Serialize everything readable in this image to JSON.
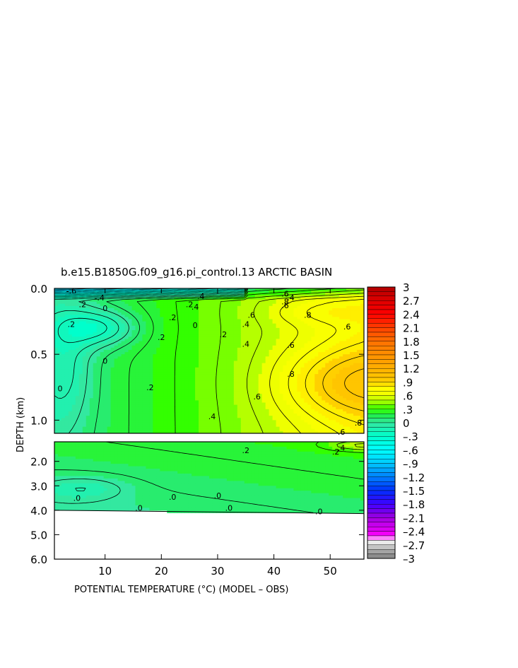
{
  "chart_data": {
    "type": "heatmap",
    "title": "b.e15.B1850G.f09_g16.pi_control.13 ARCTIC BASIN",
    "xlabel": "POTENTIAL TEMPERATURE (°C) (MODEL – OBS)",
    "ylabel": "DEPTH (km)",
    "xlim": [
      1,
      56
    ],
    "x_ticks": [
      10,
      20,
      30,
      40,
      50
    ],
    "x_tick_labels": [
      "10",
      "20",
      "30",
      "40",
      "50"
    ],
    "upper_panel": {
      "ylim": [
        0.0,
        1.1
      ],
      "y_ticks": [
        0.0,
        0.5,
        1.0
      ],
      "y_tick_labels": [
        "0.0",
        "0.5",
        "1.0"
      ]
    },
    "lower_panel": {
      "ylim": [
        1.2,
        6.0
      ],
      "y_ticks": [
        2.0,
        3.0,
        4.0,
        5.0,
        6.0
      ],
      "y_tick_labels": [
        "2.0",
        "3.0",
        "4.0",
        "5.0",
        "6.0"
      ],
      "no_data_below_depth": 4.0
    },
    "colorbar": {
      "min": -3,
      "max": 3,
      "step": 0.1,
      "tick_values": [
        3,
        2.7,
        2.4,
        2.1,
        1.8,
        1.5,
        1.2,
        0.9,
        0.6,
        0.3,
        0,
        -0.3,
        -0.6,
        -0.9,
        -1.2,
        -1.5,
        -1.8,
        -2.1,
        -2.4,
        -2.7,
        -3
      ],
      "tick_labels": [
        "3",
        "2.7",
        "2.4",
        "2.1",
        "1.8",
        "1.5",
        "1.2",
        ".9",
        ".6",
        ".3",
        "0",
        "–.3",
        "–.6",
        "–.9",
        "–1.2",
        "–1.5",
        "–1.8",
        "–2.1",
        "–2.4",
        "–2.7",
        "–3"
      ],
      "color_stops": [
        {
          "value": -3.0,
          "color": "#808080"
        },
        {
          "value": -2.8,
          "color": "#b0b0b0"
        },
        {
          "value": -2.6,
          "color": "#ffffff"
        },
        {
          "value": -2.5,
          "color": "#ff00ff"
        },
        {
          "value": -2.1,
          "color": "#a000e0"
        },
        {
          "value": -1.8,
          "color": "#4000ff"
        },
        {
          "value": -1.5,
          "color": "#0030ff"
        },
        {
          "value": -1.2,
          "color": "#0080ff"
        },
        {
          "value": -0.9,
          "color": "#00c8ff"
        },
        {
          "value": -0.6,
          "color": "#00ffff"
        },
        {
          "value": -0.3,
          "color": "#00ffcc"
        },
        {
          "value": 0.0,
          "color": "#33e8a0"
        },
        {
          "value": 0.15,
          "color": "#22ee55"
        },
        {
          "value": 0.3,
          "color": "#33ff00"
        },
        {
          "value": 0.45,
          "color": "#99ff00"
        },
        {
          "value": 0.6,
          "color": "#eeff00"
        },
        {
          "value": 0.75,
          "color": "#ffff00"
        },
        {
          "value": 0.9,
          "color": "#ffd000"
        },
        {
          "value": 1.2,
          "color": "#ffb000"
        },
        {
          "value": 1.5,
          "color": "#ff9000"
        },
        {
          "value": 1.8,
          "color": "#ff7000"
        },
        {
          "value": 2.1,
          "color": "#ff4000"
        },
        {
          "value": 2.4,
          "color": "#ff0000"
        },
        {
          "value": 2.7,
          "color": "#dd0000"
        },
        {
          "value": 3.0,
          "color": "#b00000"
        }
      ]
    },
    "contour_labels": [
      {
        "panel": "upper",
        "x": 4,
        "depth": 0.02,
        "text": "-.6"
      },
      {
        "panel": "upper",
        "x": 9,
        "depth": 0.07,
        "text": "-.4"
      },
      {
        "panel": "upper",
        "x": 6,
        "depth": 0.12,
        "text": ".2"
      },
      {
        "panel": "upper",
        "x": 10,
        "depth": 0.15,
        "text": "0"
      },
      {
        "panel": "upper",
        "x": 4,
        "depth": 0.27,
        "text": ".2"
      },
      {
        "panel": "upper",
        "x": 22,
        "depth": 0.22,
        "text": ".2"
      },
      {
        "panel": "upper",
        "x": 20,
        "depth": 0.37,
        "text": ".2"
      },
      {
        "panel": "upper",
        "x": 26,
        "depth": 0.28,
        "text": "0"
      },
      {
        "panel": "upper",
        "x": 27,
        "depth": 0.06,
        "text": ".4"
      },
      {
        "panel": "upper",
        "x": 25,
        "depth": 0.12,
        "text": ".2"
      },
      {
        "panel": "upper",
        "x": 26,
        "depth": 0.14,
        "text": ".4"
      },
      {
        "panel": "upper",
        "x": 31,
        "depth": 0.35,
        "text": ".2"
      },
      {
        "panel": "upper",
        "x": 35,
        "depth": 0.27,
        "text": ".4"
      },
      {
        "panel": "upper",
        "x": 36,
        "depth": 0.2,
        "text": ".6"
      },
      {
        "panel": "upper",
        "x": 35,
        "depth": 0.42,
        "text": ".4"
      },
      {
        "panel": "upper",
        "x": 42,
        "depth": 0.04,
        "text": ".6"
      },
      {
        "panel": "upper",
        "x": 43,
        "depth": 0.07,
        "text": ".4"
      },
      {
        "panel": "upper",
        "x": 42,
        "depth": 0.1,
        "text": ".8"
      },
      {
        "panel": "upper",
        "x": 42,
        "depth": 0.13,
        "text": ".6"
      },
      {
        "panel": "upper",
        "x": 46,
        "depth": 0.2,
        "text": ".8"
      },
      {
        "panel": "upper",
        "x": 53,
        "depth": 0.29,
        "text": ".6"
      },
      {
        "panel": "upper",
        "x": 43,
        "depth": 0.43,
        "text": ".6"
      },
      {
        "panel": "upper",
        "x": 43,
        "depth": 0.65,
        "text": ".8"
      },
      {
        "panel": "upper",
        "x": 10,
        "depth": 0.55,
        "text": "0"
      },
      {
        "panel": "upper",
        "x": 2,
        "depth": 0.76,
        "text": "0"
      },
      {
        "panel": "upper",
        "x": 18,
        "depth": 0.75,
        "text": ".2"
      },
      {
        "panel": "upper",
        "x": 29,
        "depth": 0.97,
        "text": ".4"
      },
      {
        "panel": "upper",
        "x": 37,
        "depth": 0.82,
        "text": ".6"
      },
      {
        "panel": "upper",
        "x": 55,
        "depth": 1.02,
        "text": ".8"
      },
      {
        "panel": "upper",
        "x": 52,
        "depth": 1.09,
        "text": ".6"
      },
      {
        "panel": "lower",
        "x": 35,
        "depth": 1.55,
        "text": ".2"
      },
      {
        "panel": "lower",
        "x": 52,
        "depth": 1.45,
        "text": ".4"
      },
      {
        "panel": "lower",
        "x": 51,
        "depth": 1.6,
        "text": ".2"
      },
      {
        "panel": "lower",
        "x": 5,
        "depth": 3.5,
        "text": ".0"
      },
      {
        "panel": "lower",
        "x": 22,
        "depth": 3.45,
        "text": ".0"
      },
      {
        "panel": "lower",
        "x": 30,
        "depth": 3.4,
        "text": ".0"
      },
      {
        "panel": "lower",
        "x": 16,
        "depth": 3.9,
        "text": ".0"
      },
      {
        "panel": "lower",
        "x": 32,
        "depth": 3.9,
        "text": ".0"
      },
      {
        "panel": "lower",
        "x": 48,
        "depth": 4.05,
        "text": ".0"
      }
    ]
  }
}
